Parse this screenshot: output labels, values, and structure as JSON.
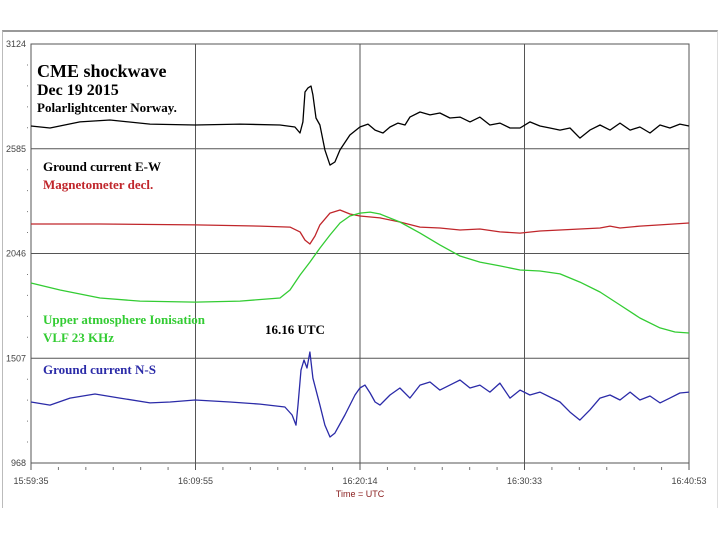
{
  "chart_data": {
    "type": "line",
    "title": "CME shockwave",
    "subtitle": "Dec 19 2015",
    "source": "Polarlightcenter Norway.",
    "xlabel": "Time = UTC",
    "ylabel": "",
    "x_unit": "minutes since 15:59:35",
    "xlim": [
      0,
      41.31
    ],
    "ylim": [
      968,
      3124
    ],
    "x_ticks": [
      "15:59:35",
      "16:09:55",
      "16:20:14",
      "16:30:33",
      "16:40:53"
    ],
    "y_ticks": [
      "3124",
      "2585",
      "2046",
      "1507",
      "968"
    ],
    "grid": true,
    "annotation": "16.16 UTC",
    "series": [
      {
        "name": "Ground current E-W",
        "color": "#000000",
        "points": [
          [
            0,
            2702
          ],
          [
            1.19,
            2692
          ],
          [
            3.07,
            2723
          ],
          [
            4.96,
            2733
          ],
          [
            7.47,
            2712
          ],
          [
            10.3,
            2707
          ],
          [
            13.12,
            2712
          ],
          [
            15.63,
            2707
          ],
          [
            16.57,
            2697
          ],
          [
            16.89,
            2666
          ],
          [
            17.07,
            2723
          ],
          [
            17.2,
            2877
          ],
          [
            17.39,
            2898
          ],
          [
            17.58,
            2908
          ],
          [
            17.7,
            2862
          ],
          [
            17.89,
            2743
          ],
          [
            18.14,
            2707
          ],
          [
            18.45,
            2579
          ],
          [
            18.77,
            2501
          ],
          [
            19.08,
            2517
          ],
          [
            19.4,
            2579
          ],
          [
            20.02,
            2656
          ],
          [
            20.65,
            2697
          ],
          [
            21.16,
            2712
          ],
          [
            21.6,
            2681
          ],
          [
            22.1,
            2666
          ],
          [
            22.54,
            2697
          ],
          [
            23.04,
            2717
          ],
          [
            23.48,
            2707
          ],
          [
            23.79,
            2748
          ],
          [
            24.42,
            2774
          ],
          [
            25.05,
            2759
          ],
          [
            25.67,
            2769
          ],
          [
            26.3,
            2743
          ],
          [
            26.93,
            2748
          ],
          [
            27.56,
            2723
          ],
          [
            28.18,
            2748
          ],
          [
            28.81,
            2707
          ],
          [
            29.44,
            2717
          ],
          [
            30.07,
            2692
          ],
          [
            30.7,
            2692
          ],
          [
            31.32,
            2723
          ],
          [
            31.95,
            2702
          ],
          [
            32.58,
            2692
          ],
          [
            33.21,
            2681
          ],
          [
            33.84,
            2692
          ],
          [
            34.46,
            2640
          ],
          [
            35.09,
            2681
          ],
          [
            35.72,
            2707
          ],
          [
            36.35,
            2681
          ],
          [
            36.98,
            2717
          ],
          [
            37.61,
            2681
          ],
          [
            38.23,
            2697
          ],
          [
            38.86,
            2666
          ],
          [
            39.49,
            2707
          ],
          [
            40.11,
            2692
          ],
          [
            40.74,
            2712
          ],
          [
            41.31,
            2702
          ]
        ]
      },
      {
        "name": "Magnetometer decl.",
        "color": "#c0262b",
        "points": [
          [
            0,
            2198
          ],
          [
            4.33,
            2198
          ],
          [
            10.3,
            2193
          ],
          [
            14.38,
            2187
          ],
          [
            16.26,
            2182
          ],
          [
            16.89,
            2157
          ],
          [
            17.2,
            2115
          ],
          [
            17.51,
            2095
          ],
          [
            17.83,
            2136
          ],
          [
            18.14,
            2193
          ],
          [
            18.77,
            2254
          ],
          [
            19.4,
            2270
          ],
          [
            20.02,
            2249
          ],
          [
            20.65,
            2239
          ],
          [
            21.91,
            2229
          ],
          [
            23.16,
            2208
          ],
          [
            24.42,
            2182
          ],
          [
            25.67,
            2177
          ],
          [
            26.93,
            2167
          ],
          [
            28.18,
            2172
          ],
          [
            29.44,
            2157
          ],
          [
            30.7,
            2151
          ],
          [
            31.95,
            2162
          ],
          [
            33.21,
            2167
          ],
          [
            34.46,
            2172
          ],
          [
            35.72,
            2177
          ],
          [
            36.35,
            2187
          ],
          [
            36.98,
            2177
          ],
          [
            38.23,
            2187
          ],
          [
            39.49,
            2193
          ],
          [
            41.31,
            2203
          ]
        ]
      },
      {
        "name": "Upper atmosphere Ionisation VLF 23 KHz",
        "color": "#33cc33",
        "points": [
          [
            0,
            1894
          ],
          [
            1.82,
            1858
          ],
          [
            4.33,
            1817
          ],
          [
            6.84,
            1801
          ],
          [
            10.3,
            1796
          ],
          [
            13.12,
            1801
          ],
          [
            15.63,
            1817
          ],
          [
            16.26,
            1858
          ],
          [
            16.89,
            1935
          ],
          [
            17.51,
            2002
          ],
          [
            18.14,
            2074
          ],
          [
            18.77,
            2141
          ],
          [
            19.4,
            2203
          ],
          [
            20.02,
            2239
          ],
          [
            20.65,
            2254
          ],
          [
            21.29,
            2259
          ],
          [
            21.91,
            2249
          ],
          [
            23.16,
            2208
          ],
          [
            24.42,
            2151
          ],
          [
            25.67,
            2090
          ],
          [
            26.93,
            2033
          ],
          [
            28.18,
            2002
          ],
          [
            29.44,
            1982
          ],
          [
            30.7,
            1961
          ],
          [
            31.95,
            1956
          ],
          [
            33.21,
            1941
          ],
          [
            34.46,
            1899
          ],
          [
            35.72,
            1848
          ],
          [
            36.98,
            1781
          ],
          [
            38.23,
            1714
          ],
          [
            39.49,
            1663
          ],
          [
            40.43,
            1642
          ],
          [
            41.31,
            1637
          ]
        ]
      },
      {
        "name": "Ground current N-S",
        "color": "#2b2ba8",
        "points": [
          [
            0,
            1282
          ],
          [
            1.19,
            1266
          ],
          [
            2.45,
            1302
          ],
          [
            4.02,
            1323
          ],
          [
            5.59,
            1302
          ],
          [
            7.47,
            1277
          ],
          [
            8.73,
            1282
          ],
          [
            10.3,
            1292
          ],
          [
            12.49,
            1282
          ],
          [
            14.38,
            1271
          ],
          [
            15.94,
            1256
          ],
          [
            16.39,
            1215
          ],
          [
            16.64,
            1163
          ],
          [
            16.76,
            1266
          ],
          [
            16.95,
            1446
          ],
          [
            17.14,
            1498
          ],
          [
            17.33,
            1457
          ],
          [
            17.51,
            1539
          ],
          [
            17.7,
            1405
          ],
          [
            17.89,
            1343
          ],
          [
            18.14,
            1266
          ],
          [
            18.45,
            1163
          ],
          [
            18.77,
            1102
          ],
          [
            19.08,
            1122
          ],
          [
            19.71,
            1215
          ],
          [
            20.34,
            1318
          ],
          [
            20.65,
            1354
          ],
          [
            20.97,
            1369
          ],
          [
            21.29,
            1328
          ],
          [
            21.6,
            1282
          ],
          [
            21.91,
            1266
          ],
          [
            22.54,
            1318
          ],
          [
            23.16,
            1354
          ],
          [
            23.79,
            1302
          ],
          [
            24.42,
            1369
          ],
          [
            25.05,
            1385
          ],
          [
            25.67,
            1343
          ],
          [
            26.3,
            1369
          ],
          [
            26.93,
            1395
          ],
          [
            27.56,
            1354
          ],
          [
            28.18,
            1369
          ],
          [
            28.81,
            1333
          ],
          [
            29.44,
            1379
          ],
          [
            30.07,
            1302
          ],
          [
            30.7,
            1343
          ],
          [
            31.32,
            1318
          ],
          [
            31.95,
            1333
          ],
          [
            33.21,
            1282
          ],
          [
            33.84,
            1230
          ],
          [
            34.46,
            1189
          ],
          [
            35.09,
            1241
          ],
          [
            35.72,
            1302
          ],
          [
            36.35,
            1318
          ],
          [
            36.98,
            1292
          ],
          [
            37.61,
            1333
          ],
          [
            38.23,
            1292
          ],
          [
            38.86,
            1313
          ],
          [
            39.49,
            1277
          ],
          [
            40.11,
            1302
          ],
          [
            40.74,
            1328
          ],
          [
            41.31,
            1333
          ]
        ]
      }
    ]
  }
}
